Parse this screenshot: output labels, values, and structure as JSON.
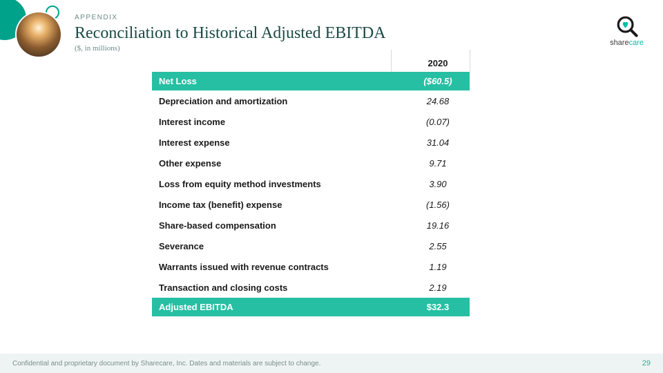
{
  "header": {
    "eyebrow": "APPENDIX",
    "title": "Reconciliation to Historical Adjusted EBITDA",
    "subtitle": "($, in millions)"
  },
  "logo": {
    "brand_left": "share",
    "brand_right": "care",
    "ring_color": "#1a1a1a",
    "heart_color": "#00bfa5"
  },
  "colors": {
    "accent": "#27bfa3",
    "deco": "#00a28a",
    "title_color": "#1a4a44",
    "eyebrow_color": "#6b8a86",
    "footer_bg": "#eef4f3",
    "divider": "#d9d9d9"
  },
  "table": {
    "column_header": "2020",
    "top_band": {
      "label": "Net Loss",
      "value": "($60.5)"
    },
    "rows": [
      {
        "label": "Depreciation and amortization",
        "value": "24.68"
      },
      {
        "label": "Interest income",
        "value": "(0.07)"
      },
      {
        "label": "Interest expense",
        "value": "31.04"
      },
      {
        "label": "Other expense",
        "value": "9.71"
      },
      {
        "label": "Loss from equity method investments",
        "value": "3.90"
      },
      {
        "label": "Income tax (benefit) expense",
        "value": "(1.56)"
      },
      {
        "label": "Share-based compensation",
        "value": "19.16"
      },
      {
        "label": "Severance",
        "value": "2.55"
      },
      {
        "label": "Warrants issued with revenue contracts",
        "value": "1.19"
      },
      {
        "label": "Transaction and closing costs",
        "value": "2.19"
      }
    ],
    "bottom_band": {
      "label": "Adjusted EBITDA",
      "value": "$32.3"
    }
  },
  "footer": {
    "disclaimer": "Confidential and proprietary document by Sharecare, Inc. Dates and materials are subject to change.",
    "page": "29"
  }
}
